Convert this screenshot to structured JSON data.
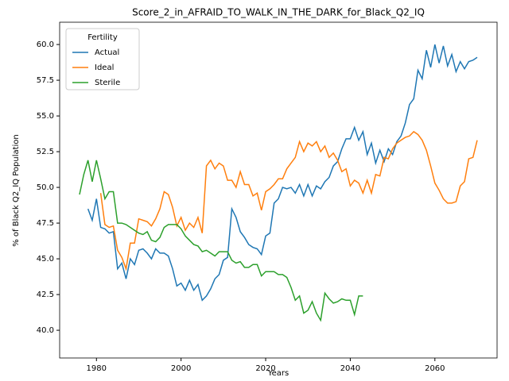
{
  "chart_data": {
    "type": "line",
    "title": "Score_2_in_AFRAID_TO_WALK_IN_THE_DARK_for_Black_Q2_IQ",
    "xlabel": "Years",
    "ylabel": "% of Black Q2_IQ Population",
    "legend_title": "Fertility",
    "legend": "upper left",
    "grid": false,
    "xlim": [
      1971.3,
      2074.7
    ],
    "ylim": [
      38.06,
      61.56
    ],
    "xticks": [
      1980,
      2000,
      2020,
      2040,
      2060
    ],
    "yticks": [
      {
        "value": 40,
        "label": "40.0"
      },
      {
        "value": 42.5,
        "label": "42.5"
      },
      {
        "value": 45,
        "label": "45.0"
      },
      {
        "value": 47.5,
        "label": "47.5"
      },
      {
        "value": 50,
        "label": "50.0"
      },
      {
        "value": 52.5,
        "label": "52.5"
      },
      {
        "value": 55,
        "label": "55.0"
      },
      {
        "value": 57.5,
        "label": "57.5"
      },
      {
        "value": 60,
        "label": "60.0"
      }
    ],
    "x": [
      1976,
      1977,
      1978,
      1979,
      1980,
      1981,
      1982,
      1983,
      1984,
      1985,
      1986,
      1987,
      1988,
      1989,
      1990,
      1991,
      1992,
      1993,
      1994,
      1995,
      1996,
      1997,
      1998,
      1999,
      2000,
      2001,
      2002,
      2003,
      2004,
      2005,
      2006,
      2007,
      2008,
      2009,
      2010,
      2011,
      2012,
      2013,
      2014,
      2015,
      2016,
      2017,
      2018,
      2019,
      2020,
      2021,
      2022,
      2023,
      2024,
      2025,
      2026,
      2027,
      2028,
      2029,
      2030,
      2031,
      2032,
      2033,
      2034,
      2035,
      2036,
      2037,
      2038,
      2039,
      2040,
      2041,
      2042,
      2043,
      2044,
      2045,
      2046,
      2047,
      2048,
      2049,
      2050,
      2051,
      2052,
      2053,
      2054,
      2055,
      2056,
      2057,
      2058,
      2059,
      2060,
      2061,
      2062,
      2063,
      2064,
      2065,
      2066,
      2067,
      2068,
      2069,
      2070
    ],
    "series": [
      {
        "name": "Actual",
        "color": "#1f77b4",
        "values": [
          null,
          null,
          48.5,
          47.7,
          49.2,
          47.2,
          47.1,
          46.8,
          46.9,
          44.3,
          44.7,
          43.6,
          45.0,
          44.6,
          45.6,
          45.7,
          45.4,
          45.0,
          45.7,
          45.4,
          45.4,
          45.2,
          44.3,
          43.1,
          43.3,
          42.8,
          43.5,
          42.8,
          43.2,
          42.1,
          42.4,
          42.9,
          43.6,
          43.9,
          44.9,
          45.1,
          48.5,
          47.9,
          46.9,
          46.5,
          46.0,
          45.8,
          45.7,
          45.3,
          46.6,
          46.8,
          48.9,
          49.2,
          50.0,
          49.9,
          50.0,
          49.6,
          50.2,
          49.4,
          50.2,
          49.4,
          50.1,
          49.9,
          50.4,
          50.7,
          51.5,
          51.8,
          52.7,
          53.4,
          53.4,
          54.2,
          53.3,
          53.9,
          52.3,
          53.1,
          51.7,
          52.6,
          51.8,
          52.7,
          52.3,
          53.2,
          53.6,
          54.5,
          55.8,
          56.2,
          58.2,
          57.6,
          59.6,
          58.4,
          60.0,
          58.7,
          59.9,
          58.5,
          59.3,
          58.1,
          58.8,
          58.3,
          58.8,
          58.9,
          59.1
        ]
      },
      {
        "name": "Ideal",
        "color": "#ff7f0e",
        "values": [
          null,
          null,
          null,
          null,
          null,
          49.6,
          47.4,
          47.2,
          47.3,
          45.6,
          45.1,
          44.3,
          46.1,
          46.1,
          47.8,
          47.7,
          47.6,
          47.3,
          47.8,
          48.5,
          49.7,
          49.5,
          48.6,
          47.3,
          47.9,
          47.0,
          47.5,
          47.2,
          47.9,
          46.8,
          51.5,
          51.9,
          51.3,
          51.7,
          51.5,
          50.5,
          50.5,
          50.0,
          51.1,
          50.2,
          50.2,
          49.4,
          49.6,
          48.4,
          49.7,
          49.9,
          50.2,
          50.6,
          50.6,
          51.3,
          51.7,
          52.1,
          53.2,
          52.5,
          53.1,
          52.9,
          53.2,
          52.5,
          52.9,
          52.1,
          52.4,
          51.9,
          51.1,
          51.3,
          50.1,
          50.5,
          50.3,
          49.6,
          50.5,
          49.6,
          50.9,
          50.8,
          52.1,
          52.0,
          52.7,
          53.1,
          53.3,
          53.5,
          53.6,
          53.9,
          53.7,
          53.3,
          52.6,
          51.5,
          50.3,
          49.8,
          49.2,
          48.9,
          48.9,
          49.0,
          50.1,
          50.4,
          52.0,
          52.1,
          53.3
        ]
      },
      {
        "name": "Sterile",
        "color": "#2ca02c",
        "values": [
          49.5,
          50.9,
          51.9,
          50.4,
          51.9,
          50.6,
          49.2,
          49.7,
          49.7,
          47.5,
          47.5,
          47.4,
          47.2,
          47.0,
          46.8,
          46.7,
          46.9,
          46.3,
          46.2,
          46.5,
          47.2,
          47.4,
          47.4,
          47.4,
          47.1,
          46.6,
          46.3,
          46.0,
          45.9,
          45.5,
          45.6,
          45.4,
          45.2,
          45.5,
          45.5,
          45.5,
          44.9,
          44.7,
          44.8,
          44.4,
          44.4,
          44.6,
          44.6,
          43.8,
          44.1,
          44.1,
          44.1,
          43.9,
          43.9,
          43.7,
          43.0,
          42.1,
          42.4,
          41.2,
          41.4,
          42.0,
          41.2,
          40.7,
          42.6,
          42.2,
          41.9,
          42.0,
          42.2,
          42.1,
          42.1,
          41.1,
          42.4,
          42.4,
          null,
          null,
          null,
          null,
          null,
          null,
          null,
          null,
          null,
          null,
          null,
          null,
          null,
          null,
          null,
          null,
          null,
          null,
          null,
          null,
          null,
          null,
          null,
          null,
          null,
          null,
          null
        ]
      }
    ]
  }
}
